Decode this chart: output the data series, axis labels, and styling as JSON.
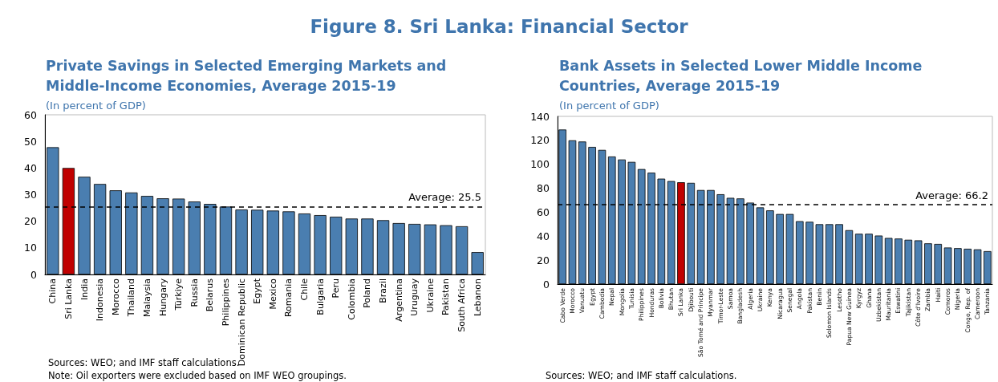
{
  "chart_data": [
    {
      "type": "bar",
      "title": "Private Savings in Selected Emerging Markets and Middle-Income Economies, Average 2015-19",
      "subtitle": "(In percent of GDP)",
      "annotations": [
        "Figure 8. Sri Lanka: Financial Sector",
        "Sources: WEO; and IMF staff calculations.",
        "Note: Oil exporters were excluded based on IMF WEO groupings."
      ],
      "categories": [
        "China",
        "Sri Lanka",
        "India",
        "Indonesia",
        "Morocco",
        "Thailand",
        "Malaysia",
        "Hungary",
        "Türkiye",
        "Russia",
        "Belarus",
        "Philippines",
        "Dominican Republic",
        "Egypt",
        "Mexico",
        "Romania",
        "Chile",
        "Bulgaria",
        "Peru",
        "Colombia",
        "Poland",
        "Brazil",
        "Argentina",
        "Uruguay",
        "Ukraine",
        "Pakistan",
        "South Africa",
        "Lebanon"
      ],
      "values": [
        47.8,
        40,
        36.7,
        34,
        31.6,
        30.8,
        29.5,
        28.6,
        28.5,
        27.4,
        26.5,
        25.5,
        24.4,
        24.3,
        24,
        23.7,
        22.9,
        22.3,
        21.7,
        21,
        21,
        20.4,
        19.3,
        19,
        18.8,
        18.5,
        18.1,
        8.4
      ],
      "colors": [
        "#4a7eb0",
        "#c00000",
        "#4a7eb0",
        "#4a7eb0",
        "#4a7eb0",
        "#4a7eb0",
        "#4a7eb0",
        "#4a7eb0",
        "#4a7eb0",
        "#4a7eb0",
        "#4a7eb0",
        "#4a7eb0",
        "#4a7eb0",
        "#4a7eb0",
        "#4a7eb0",
        "#4a7eb0",
        "#4a7eb0",
        "#4a7eb0",
        "#4a7eb0",
        "#4a7eb0",
        "#4a7eb0",
        "#4a7eb0",
        "#4a7eb0",
        "#4a7eb0",
        "#4a7eb0",
        "#4a7eb0",
        "#4a7eb0",
        "#4a7eb0"
      ],
      "ylim": [
        0,
        60
      ],
      "yticks": [
        0,
        10,
        20,
        30,
        40,
        50,
        60
      ],
      "grid": false,
      "ref_lines": [
        {
          "axis": "y",
          "value": 25.5,
          "label": "Average: 25.5",
          "color": "#000000",
          "line_style": "dashed"
        }
      ]
    },
    {
      "type": "bar",
      "title": "Bank Assets in Selected Lower Middle Income Countries, Average 2015-19",
      "subtitle": "(In percent of GDP)",
      "annotations": [
        "Sources: WEO; and IMF staff calculations."
      ],
      "categories": [
        "Cabo Verde",
        "Morocco",
        "Vanuatu",
        "Egypt",
        "Cambodia",
        "Nepal",
        "Mongolia",
        "Tunisia",
        "Philippines",
        "Honduras",
        "Bolivia",
        "Bhutan",
        "Sri Lanka",
        "Djibouti",
        "São Tomé and Principe",
        "Myanmar",
        "Timor-Leste",
        "Samoa",
        "Bangladesh",
        "Algeria",
        "Ukraine",
        "Kenya",
        "Nicaragua",
        "Senegal",
        "Angola",
        "Pakistan",
        "Benin",
        "Solomon Islands",
        "Lesotho",
        "Papua New Guinea",
        "Kyrgyz",
        "Ghana",
        "Uzbekistan",
        "Mauritania",
        "Eswatini",
        "Tajikistan",
        "Côte d'Ivoire",
        "Zambia",
        "Haiti",
        "Comoros",
        "Nigeria",
        "Congo, Rep. of",
        "Cameroon",
        "Tanzania"
      ],
      "values": [
        129,
        120,
        119,
        114.5,
        112,
        106.5,
        104,
        102,
        96,
        93,
        88,
        86,
        85,
        84.5,
        78.5,
        78.5,
        75,
        72,
        71.5,
        68,
        64,
        61.5,
        58.5,
        58.5,
        52.5,
        52,
        50,
        50,
        50,
        45,
        42,
        42,
        40.5,
        38.5,
        38,
        37,
        36.5,
        34,
        33.5,
        30.5,
        30,
        29.5,
        29,
        27.5
      ],
      "colors": [
        "#4a7eb0",
        "#4a7eb0",
        "#4a7eb0",
        "#4a7eb0",
        "#4a7eb0",
        "#4a7eb0",
        "#4a7eb0",
        "#4a7eb0",
        "#4a7eb0",
        "#4a7eb0",
        "#4a7eb0",
        "#4a7eb0",
        "#c00000",
        "#4a7eb0",
        "#4a7eb0",
        "#4a7eb0",
        "#4a7eb0",
        "#4a7eb0",
        "#4a7eb0",
        "#4a7eb0",
        "#4a7eb0",
        "#4a7eb0",
        "#4a7eb0",
        "#4a7eb0",
        "#4a7eb0",
        "#4a7eb0",
        "#4a7eb0",
        "#4a7eb0",
        "#4a7eb0",
        "#4a7eb0",
        "#4a7eb0",
        "#4a7eb0",
        "#4a7eb0",
        "#4a7eb0",
        "#4a7eb0",
        "#4a7eb0",
        "#4a7eb0",
        "#4a7eb0",
        "#4a7eb0",
        "#4a7eb0",
        "#4a7eb0",
        "#4a7eb0",
        "#4a7eb0",
        "#4a7eb0"
      ],
      "ylim": [
        0,
        140
      ],
      "yticks": [
        0,
        20,
        40,
        60,
        80,
        100,
        120,
        140
      ],
      "grid": false,
      "ref_lines": [
        {
          "axis": "y",
          "value": 66.2,
          "label": "Average: 66.2",
          "color": "#000000",
          "line_style": "dashed"
        }
      ]
    }
  ]
}
